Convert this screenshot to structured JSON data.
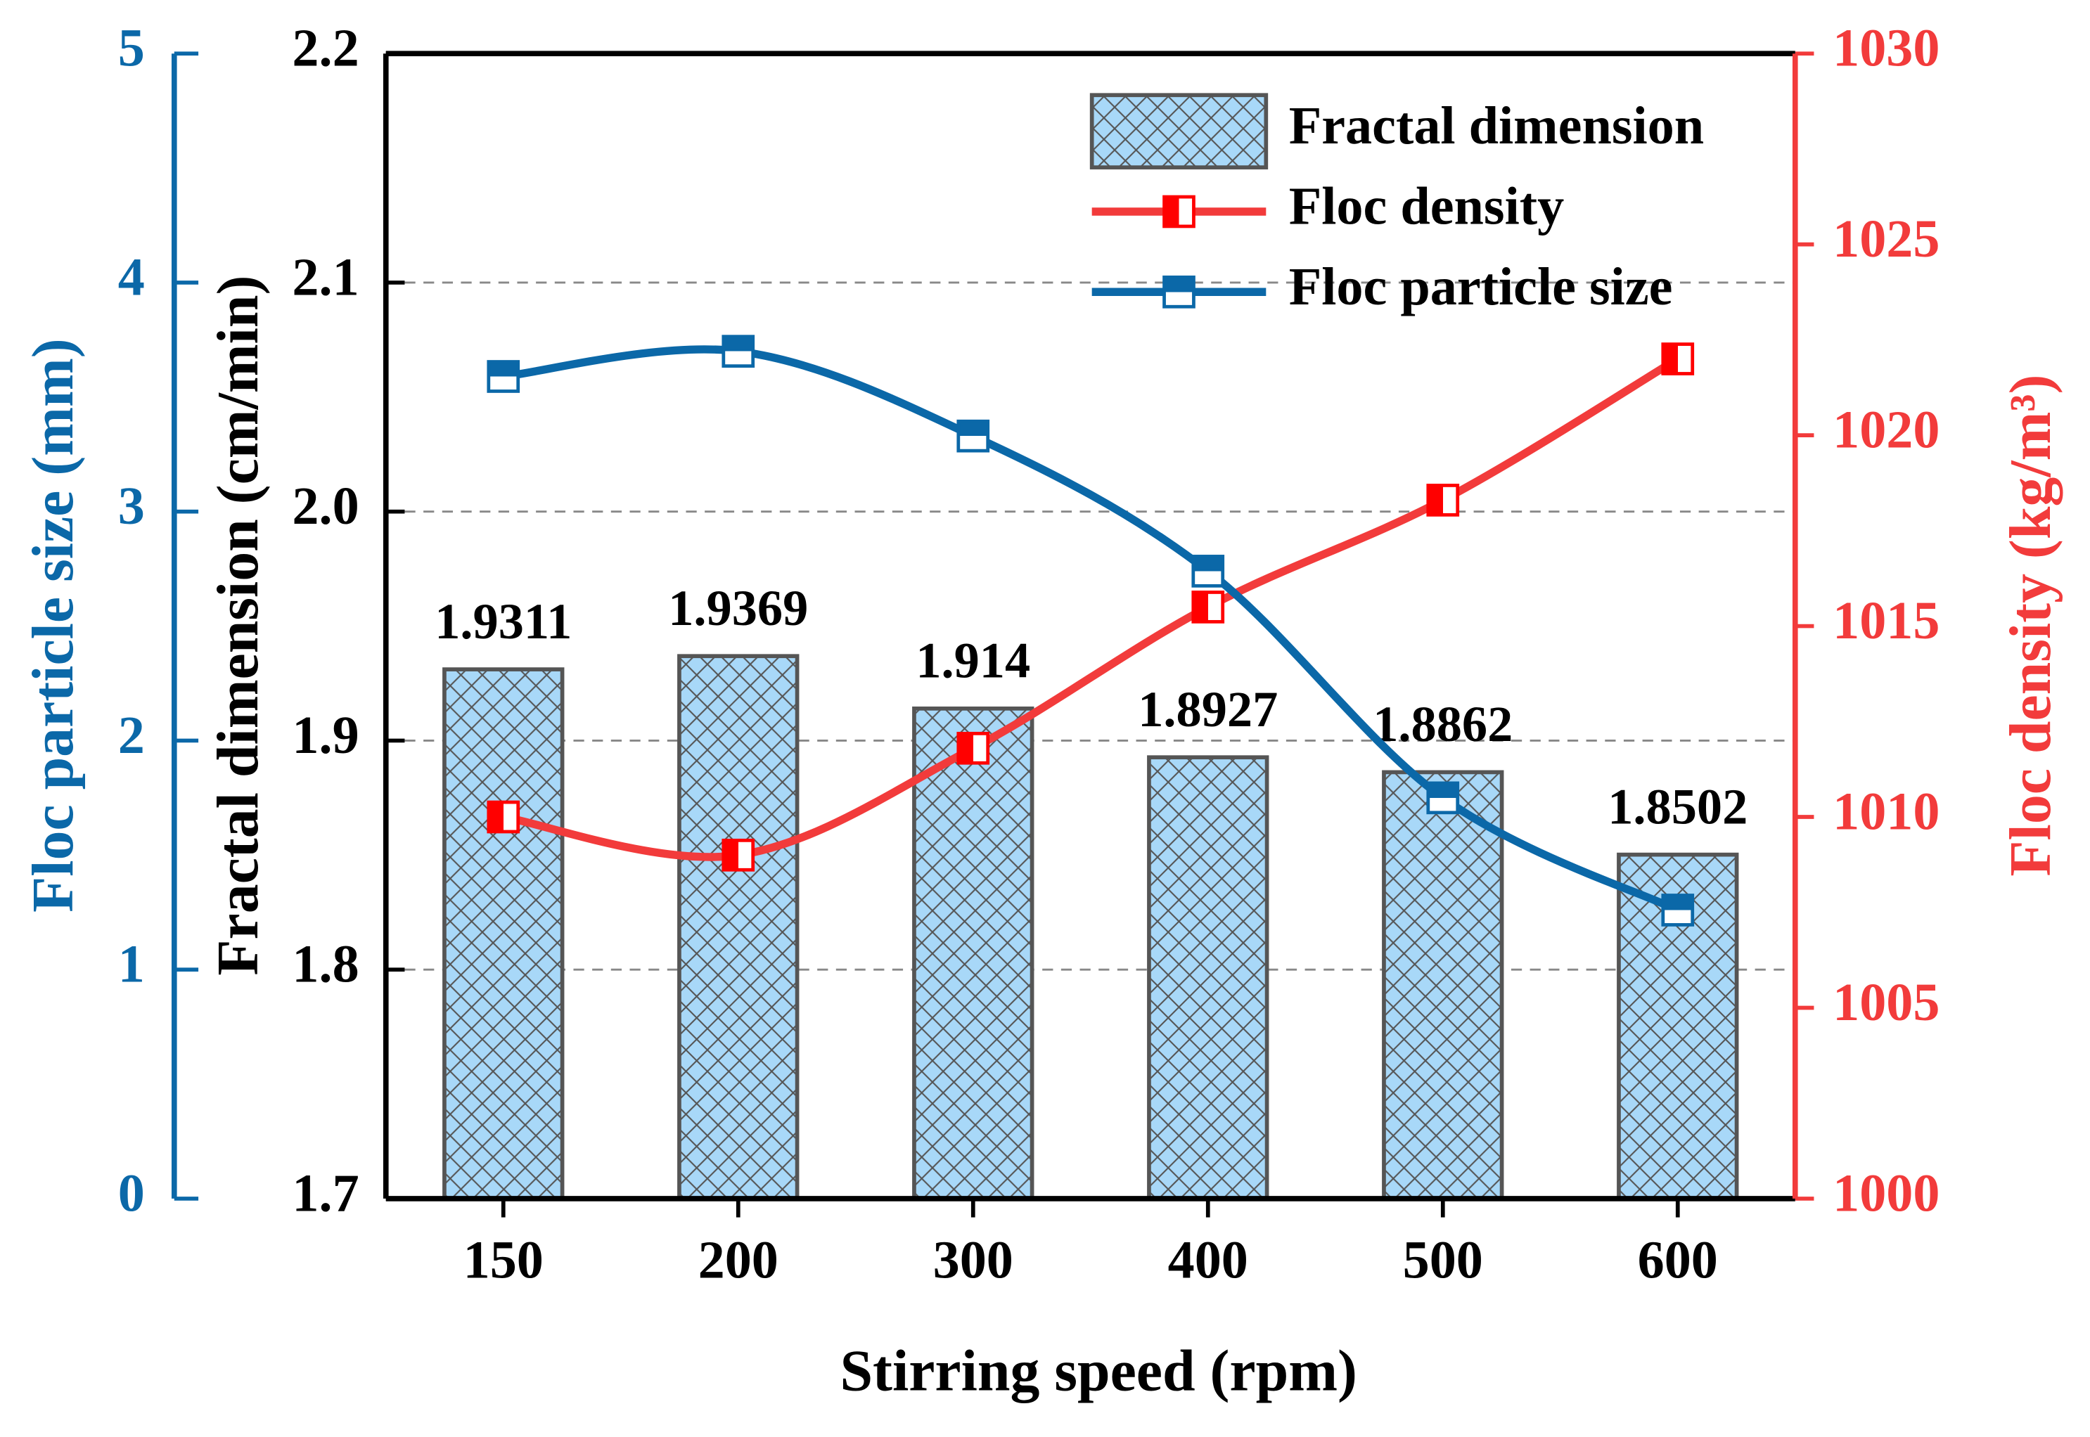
{
  "chart_data": {
    "type": "bar",
    "x_label": "Stirring speed (rpm)",
    "y_label": "Fractal dimension (cm/min)",
    "y2_label": "Floc density (kg/m³)",
    "y3_label": "Floc particle size (mm)",
    "categories": [
      "150",
      "200",
      "300",
      "400",
      "500",
      "600"
    ],
    "series": [
      {
        "name": "Fractal dimension",
        "type": "bar",
        "color": "#a8d8f8",
        "values": [
          1.9311,
          1.9369,
          1.914,
          1.8927,
          1.8862,
          1.8502
        ]
      },
      {
        "name": "Floc density",
        "type": "line",
        "axis": "y2",
        "color": "#f23b3b",
        "values": [
          1010.0,
          1009.0,
          1011.8,
          1015.5,
          1018.3,
          1022.0
        ]
      },
      {
        "name": "Floc particle size",
        "type": "line",
        "axis": "y3",
        "color": "#0b68a8",
        "values": [
          3.59,
          3.7,
          3.33,
          2.74,
          1.75,
          1.26
        ]
      }
    ],
    "ylim": [
      1.7,
      2.2
    ],
    "yticks": [
      1.7,
      1.8,
      1.9,
      {
        "value": 2,
        "label": "2.0"
      },
      2.1,
      2.2
    ],
    "y2lim": [
      1000,
      1030
    ],
    "y2ticks": [
      1000,
      1005,
      1010,
      1015,
      1020,
      1025,
      1030
    ],
    "y3lim": [
      0,
      5
    ],
    "y3ticks": [
      0,
      1,
      2,
      3,
      4,
      5
    ],
    "grid": true
  }
}
